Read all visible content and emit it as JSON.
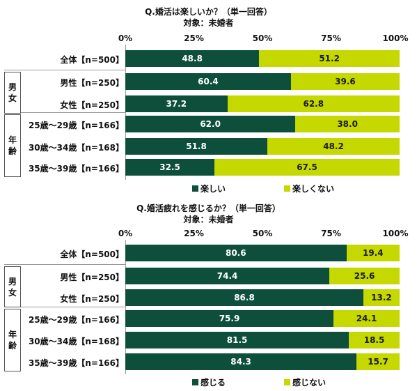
{
  "chart_data": [
    {
      "type": "bar",
      "orientation": "horizontal-stacked-100",
      "title": "Q.婚活は楽しいか？（単一回答）",
      "subtitle": "対象：未婚者",
      "xlim": [
        0,
        100
      ],
      "ticks": [
        "0%",
        "25%",
        "50%",
        "75%",
        "100%"
      ],
      "categories": [
        "全体【n=500】",
        "男性【n=250】",
        "女性【n=250】",
        "25歳～29歳【n=166】",
        "30歳～34歳【n=168】",
        "35歳～39歳【n=166】"
      ],
      "groups": [
        {
          "label": [
            "男",
            "女"
          ]
        },
        {
          "label": [
            "年",
            "齢"
          ]
        }
      ],
      "series": [
        {
          "name": "楽しい",
          "color": "#0d4f3b",
          "values": [
            48.8,
            60.4,
            37.2,
            62.0,
            51.8,
            32.5
          ]
        },
        {
          "name": "楽しくない",
          "color": "#c5d800",
          "values": [
            51.2,
            39.6,
            62.8,
            38.0,
            48.2,
            67.5
          ]
        }
      ],
      "legend": "bottom"
    },
    {
      "type": "bar",
      "orientation": "horizontal-stacked-100",
      "title": "Q.婚活疲れを感じるか？（単一回答）",
      "subtitle": "対象：未婚者",
      "xlim": [
        0,
        100
      ],
      "ticks": [
        "0%",
        "25%",
        "50%",
        "75%",
        "100%"
      ],
      "categories": [
        "全体【n=500】",
        "男性【n=250】",
        "女性【n=250】",
        "25歳～29歳【n=166】",
        "30歳～34歳【n=168】",
        "35歳～39歳【n=166】"
      ],
      "groups": [
        {
          "label": [
            "男",
            "女"
          ]
        },
        {
          "label": [
            "年",
            "齢"
          ]
        }
      ],
      "series": [
        {
          "name": "感じる",
          "color": "#0d4f3b",
          "values": [
            80.6,
            74.4,
            86.8,
            75.9,
            81.5,
            84.3
          ]
        },
        {
          "name": "感じない",
          "color": "#c5d800",
          "values": [
            19.4,
            25.6,
            13.2,
            24.1,
            18.5,
            15.7
          ]
        }
      ],
      "legend": "bottom"
    }
  ]
}
